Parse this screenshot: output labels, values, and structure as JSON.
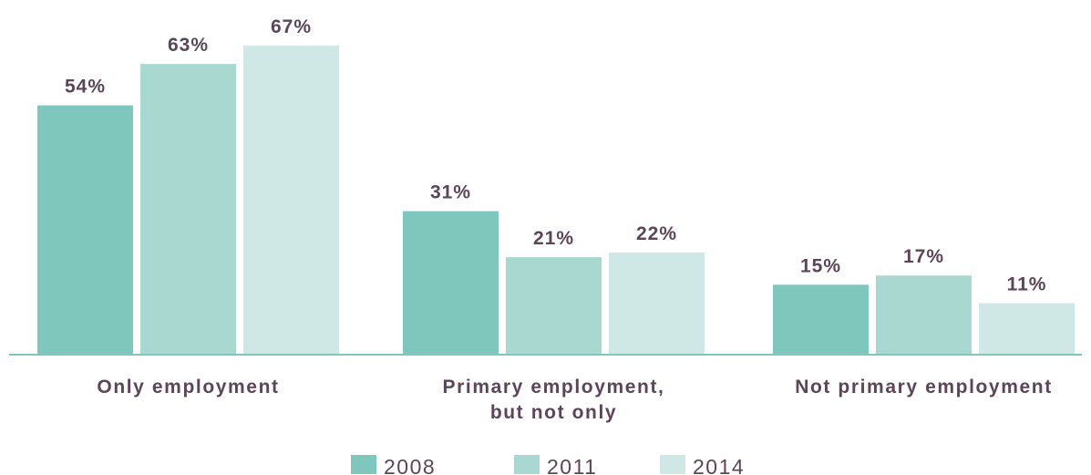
{
  "chart_data": {
    "type": "bar",
    "categories": [
      [
        "Only employment"
      ],
      [
        "Primary employment,",
        "but not only"
      ],
      [
        "Not primary employment"
      ]
    ],
    "series": [
      {
        "name": "2008",
        "values": [
          54,
          31,
          15
        ],
        "labels": [
          "54%",
          "31%",
          "15%"
        ],
        "color": "#7fc6bc"
      },
      {
        "name": "2011",
        "values": [
          63,
          21,
          17
        ],
        "labels": [
          "63%",
          "21%",
          "17%"
        ],
        "color": "#a9d8d1"
      },
      {
        "name": "2014",
        "values": [
          67,
          22,
          11
        ],
        "labels": [
          "67%",
          "22%",
          "11%"
        ],
        "color": "#d0e8e5"
      }
    ],
    "ylim": [
      0,
      67
    ],
    "grid": false,
    "legend_position": "bottom-center",
    "colors": {
      "label_text": "#5b4559",
      "axis_line": "#7fc6bc",
      "legend_text": "#5b4559"
    }
  }
}
